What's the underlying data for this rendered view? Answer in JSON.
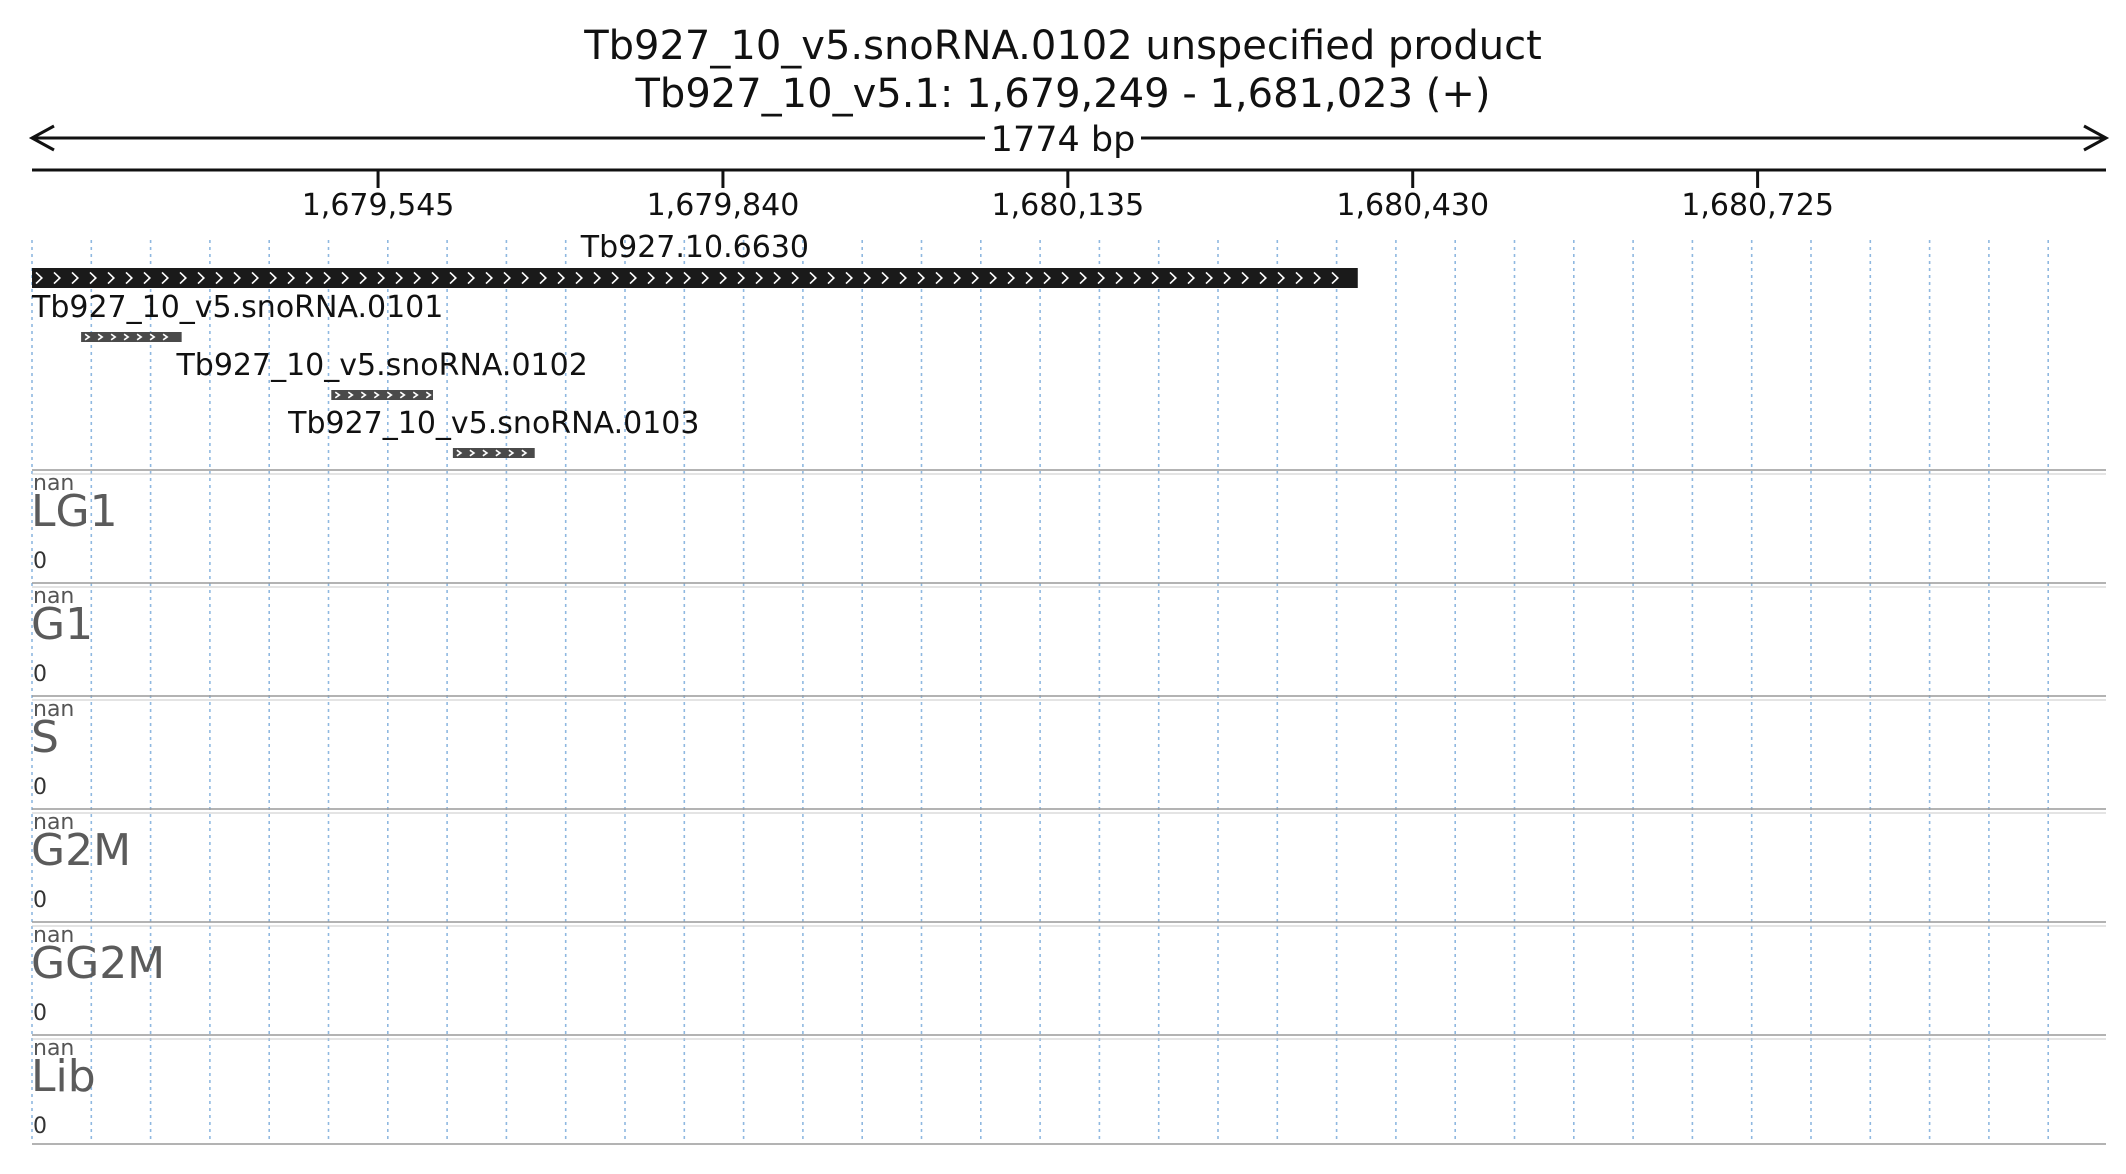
{
  "header": {
    "title_line1": "Tb927_10_v5.snoRNA.0102  unspecified product",
    "title_line2": "Tb927_10_v5.1: 1,679,249 - 1,681,023 (+)",
    "span_label": "1774 bp"
  },
  "axis": {
    "range": [
      1679249,
      1681023
    ],
    "ticks": [
      {
        "label": "1,679,545",
        "value": 1679545
      },
      {
        "label": "1,679,840",
        "value": 1679840
      },
      {
        "label": "1,680,135",
        "value": 1680135
      },
      {
        "label": "1,680,430",
        "value": 1680430
      },
      {
        "label": "1,680,725",
        "value": 1680725
      }
    ]
  },
  "features": [
    {
      "name": "Tb927.10.6630",
      "start": 1679249,
      "end": 1680383,
      "color": "#1a1a1a",
      "strand": "+"
    },
    {
      "name": "Tb927_10_v5.snoRNA.0101",
      "start": 1679291,
      "end": 1679377,
      "color": "#4a4a4a",
      "strand": "+"
    },
    {
      "name": "Tb927_10_v5.snoRNA.0102",
      "start": 1679505,
      "end": 1679592,
      "color": "#4a4a4a",
      "strand": "+"
    },
    {
      "name": "Tb927_10_v5.snoRNA.0103",
      "start": 1679609,
      "end": 1679679,
      "color": "#4a4a4a",
      "strand": "+"
    }
  ],
  "tracks": [
    {
      "name": "LG1",
      "max_label": "nan",
      "min_label": "0"
    },
    {
      "name": "G1",
      "max_label": "nan",
      "min_label": "0"
    },
    {
      "name": "S",
      "max_label": "nan",
      "min_label": "0"
    },
    {
      "name": "G2M",
      "max_label": "nan",
      "min_label": "0"
    },
    {
      "name": "GG2M",
      "max_label": "nan",
      "min_label": "0"
    },
    {
      "name": "Lib",
      "max_label": "nan",
      "min_label": "0"
    }
  ],
  "colors": {
    "grid": "#8fb8e0",
    "separator": "#9a9a9a",
    "track_label": "#5b5b5b"
  }
}
